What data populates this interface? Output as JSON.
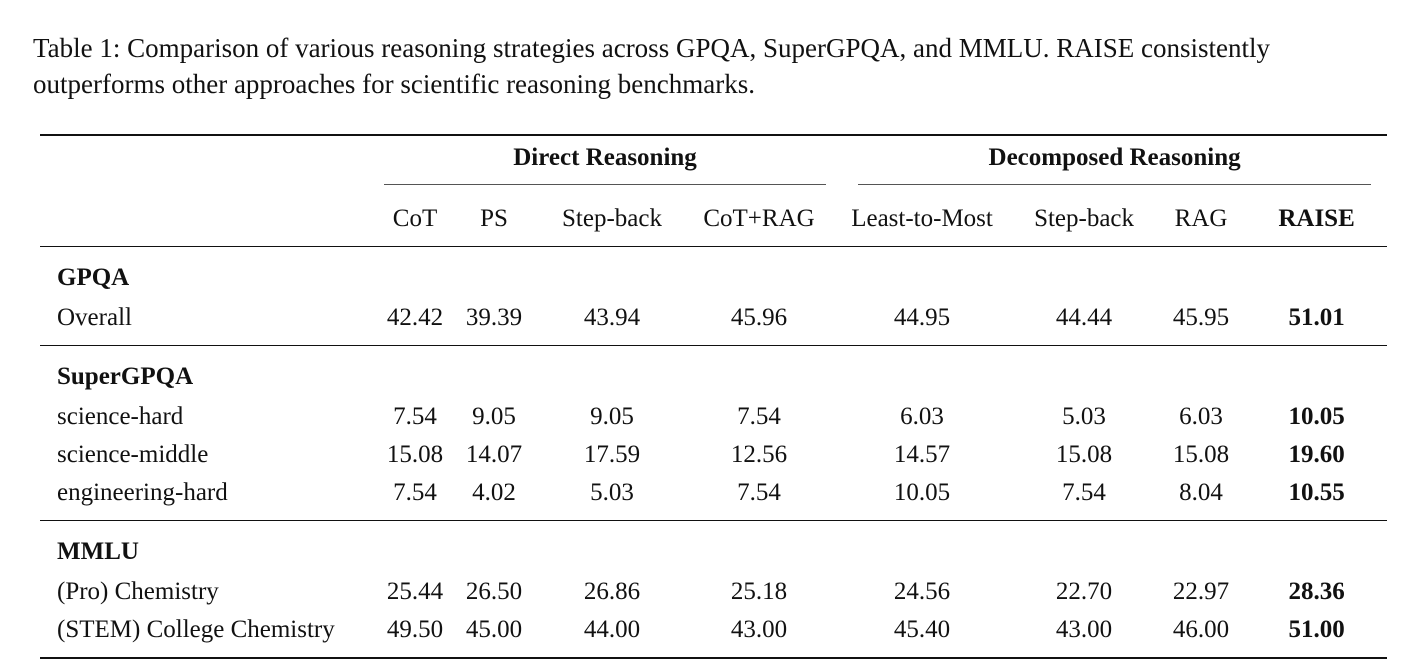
{
  "caption": {
    "line1": "Table 1: Comparison of various reasoning strategies across GPQA, SuperGPQA, and MMLU. RAISE consistently",
    "line2": "outperforms other approaches for scientific reasoning benchmarks."
  },
  "table": {
    "groups": {
      "direct": "Direct Reasoning",
      "decomposed": "Decomposed Reasoning"
    },
    "columns": [
      "CoT",
      "PS",
      "Step-back",
      "CoT+RAG",
      "Least-to-Most",
      "Step-back",
      "RAG",
      "RAISE"
    ],
    "sections": [
      {
        "title": "GPQA",
        "rows": [
          {
            "label": "Overall",
            "values": [
              "42.42",
              "39.39",
              "43.94",
              "45.96",
              "44.95",
              "44.44",
              "45.95",
              "51.01"
            ]
          }
        ]
      },
      {
        "title": "SuperGPQA",
        "rows": [
          {
            "label": "science-hard",
            "values": [
              "7.54",
              "9.05",
              "9.05",
              "7.54",
              "6.03",
              "5.03",
              "6.03",
              "10.05"
            ]
          },
          {
            "label": "science-middle",
            "values": [
              "15.08",
              "14.07",
              "17.59",
              "12.56",
              "14.57",
              "15.08",
              "15.08",
              "19.60"
            ]
          },
          {
            "label": "engineering-hard",
            "values": [
              "7.54",
              "4.02",
              "5.03",
              "7.54",
              "10.05",
              "7.54",
              "8.04",
              "10.55"
            ]
          }
        ]
      },
      {
        "title": "MMLU",
        "rows": [
          {
            "label": "(Pro) Chemistry",
            "values": [
              "25.44",
              "26.50",
              "26.86",
              "25.18",
              "24.56",
              "22.70",
              "22.97",
              "28.36"
            ]
          },
          {
            "label": "(STEM) College Chemistry",
            "values": [
              "49.50",
              "45.00",
              "44.00",
              "43.00",
              "45.40",
              "43.00",
              "46.00",
              "51.00"
            ]
          }
        ]
      }
    ]
  }
}
